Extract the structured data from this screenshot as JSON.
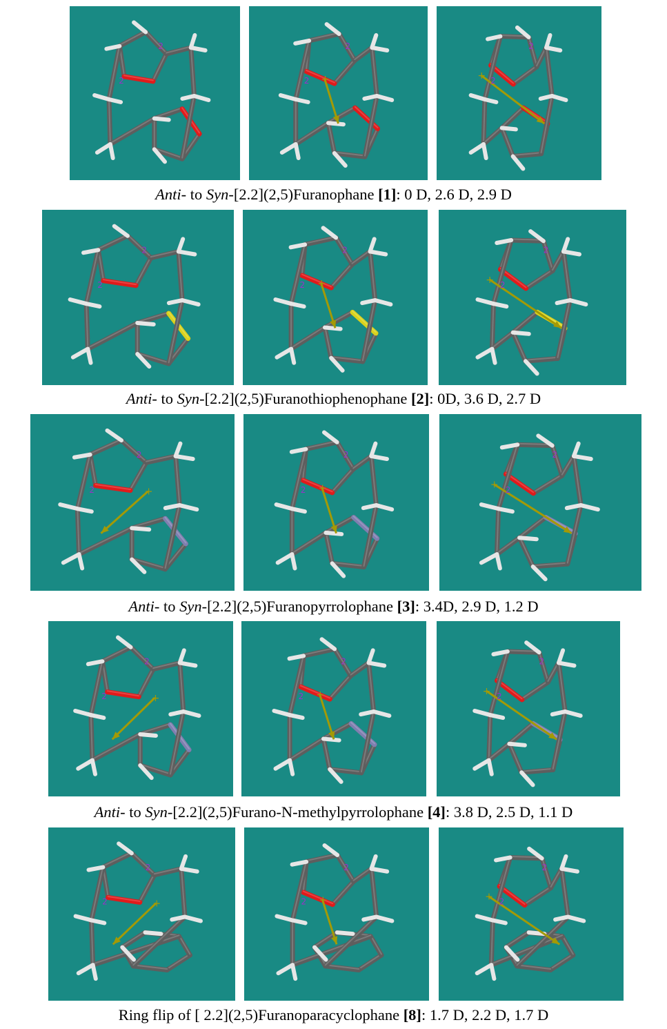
{
  "figure": {
    "colors": {
      "background": "#ffffff",
      "panel": "#198a84",
      "bond": "#5e5e5e",
      "hydrogen": "#e6e6e6",
      "oxygen": "#e01b1b",
      "sulfur": "#d9d21c",
      "nitrogen": "#7f7fb0",
      "dipole_arrow": "#a39a06",
      "stereo_label": "#9b30c8"
    },
    "rows": [
      {
        "id": "furanophane",
        "hetero_atom": "oxygen",
        "caption": {
          "italic_1": "Anti",
          "text_1": "- to ",
          "italic_2": "Syn",
          "text_2": "-[2.2](2,5)Furanophane ",
          "compound": "[1]",
          "values": ": 0 D, 2.6 D, 2.9 D"
        },
        "panels": [
          {
            "name": "anti-conformer",
            "dipole_debye": 0.0
          },
          {
            "name": "intermediate-conformer",
            "dipole_debye": 2.6
          },
          {
            "name": "syn-conformer",
            "dipole_debye": 2.9
          }
        ]
      },
      {
        "id": "furanothiophenophane",
        "hetero_atom": "sulfur",
        "caption": {
          "italic_1": "Anti",
          "text_1": "- to ",
          "italic_2": "Syn",
          "text_2": "-[2.2](2,5)Furanothiophenophane ",
          "compound": "[2]",
          "values": ": 0D, 3.6 D, 2.7 D"
        },
        "panels": [
          {
            "name": "anti-conformer",
            "dipole_debye": 0.0
          },
          {
            "name": "intermediate-conformer",
            "dipole_debye": 3.6
          },
          {
            "name": "syn-conformer",
            "dipole_debye": 2.7
          }
        ]
      },
      {
        "id": "furanopyrrolophane",
        "hetero_atom": "nitrogen",
        "caption": {
          "italic_1": "Anti",
          "text_1": "- to ",
          "italic_2": "Syn",
          "text_2": "-[2.2](2,5)Furanopyrrolophane ",
          "compound": "[3]",
          "values": ": 3.4D, 2.9 D, 1.2 D"
        },
        "panels": [
          {
            "name": "anti-conformer",
            "dipole_debye": 3.4
          },
          {
            "name": "intermediate-conformer",
            "dipole_debye": 2.9
          },
          {
            "name": "syn-conformer",
            "dipole_debye": 1.2
          }
        ]
      },
      {
        "id": "furano-n-methylpyrrolophane",
        "hetero_atom": "nitrogen",
        "caption": {
          "italic_1": "Anti",
          "text_1": "- to ",
          "italic_2": "Syn",
          "text_2": "-[2.2](2,5)Furano-N-methylpyrrolophane ",
          "compound": "[4]",
          "values": ": 3.8 D, 2.5 D, 1.1 D"
        },
        "panels": [
          {
            "name": "anti-conformer",
            "dipole_debye": 3.8
          },
          {
            "name": "intermediate-conformer",
            "dipole_debye": 2.5
          },
          {
            "name": "syn-conformer",
            "dipole_debye": 1.1
          }
        ]
      },
      {
        "id": "furanoparacyclophane",
        "hetero_atom": "none",
        "caption": {
          "text_0": "Ring flip of [ 2.2](2,5)Furanoparacyclophane ",
          "compound": "[8]",
          "values": ": 1.7 D, 2.2 D, 1.7 D"
        },
        "panels": [
          {
            "name": "conformer-1",
            "dipole_debye": 1.7
          },
          {
            "name": "conformer-2",
            "dipole_debye": 2.2
          },
          {
            "name": "conformer-3",
            "dipole_debye": 1.7
          }
        ]
      }
    ]
  }
}
